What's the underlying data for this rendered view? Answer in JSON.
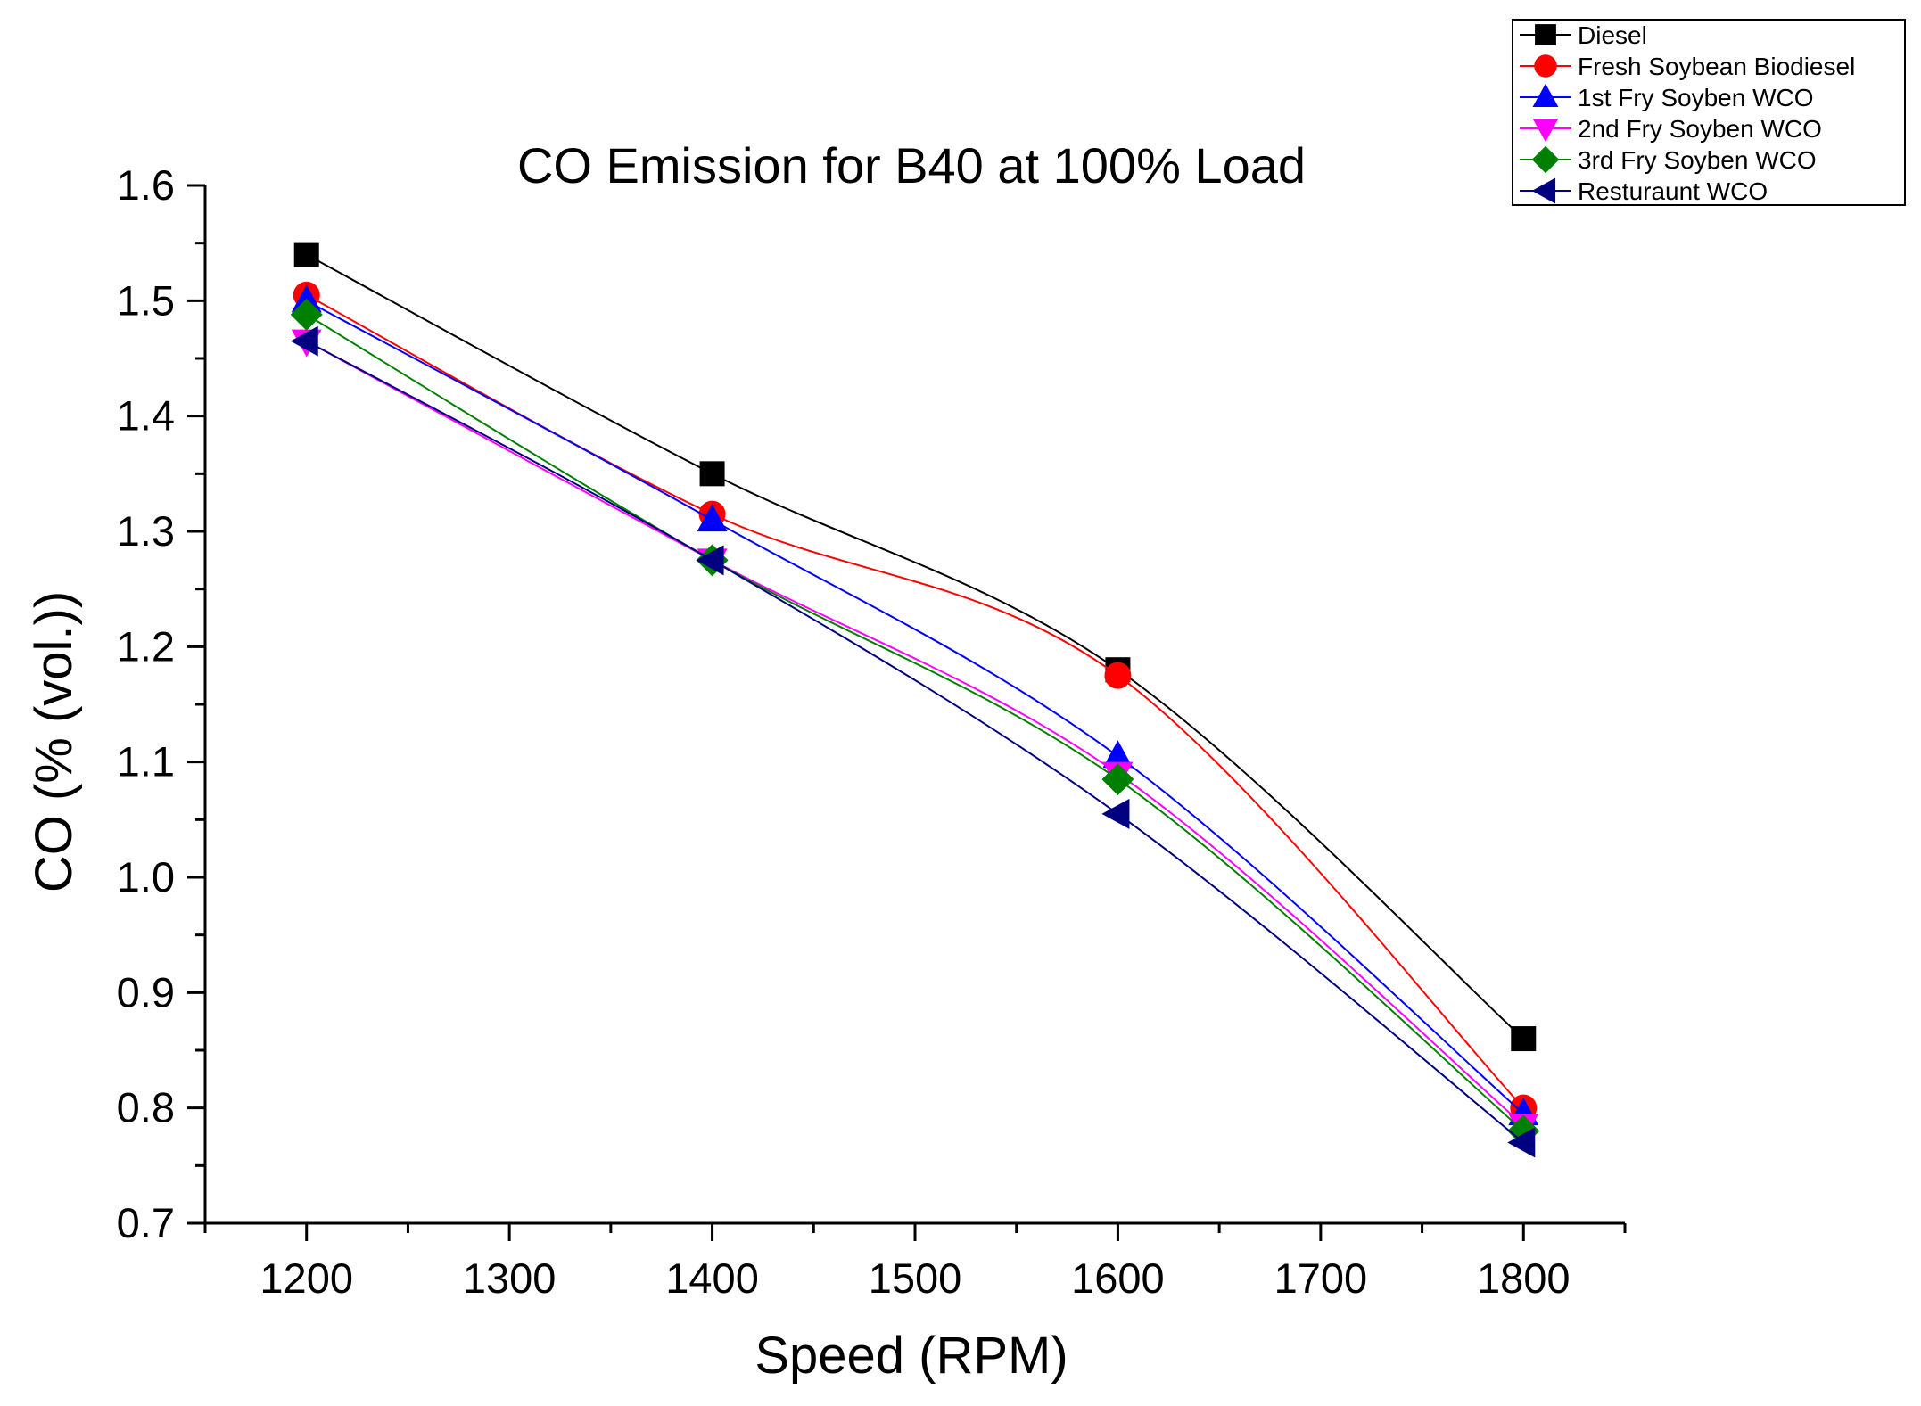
{
  "chart_data": {
    "type": "line",
    "title": "CO Emission for B40 at 100% Load",
    "xlabel": "Speed (RPM)",
    "ylabel": "CO (% (vol.))",
    "xlim": [
      1150,
      1850
    ],
    "ylim": [
      0.7,
      1.6
    ],
    "x_ticks": [
      1200,
      1300,
      1400,
      1500,
      1600,
      1700,
      1800
    ],
    "x_tick_labels": [
      "1200",
      "1300",
      "1400",
      "1500",
      "1600",
      "1700",
      "1800"
    ],
    "y_ticks": [
      0.7,
      0.8,
      0.9,
      1.0,
      1.1,
      1.2,
      1.3,
      1.4,
      1.5,
      1.6
    ],
    "y_tick_labels": [
      "0.7",
      "0.8",
      "0.9",
      "1.0",
      "1.1",
      "1.2",
      "1.3",
      "1.4",
      "1.5",
      "1.6"
    ],
    "grid": false,
    "legend_position": "top-right",
    "x": [
      1200,
      1400,
      1600,
      1800
    ],
    "series": [
      {
        "name": "Diesel",
        "values": [
          1.54,
          1.35,
          1.18,
          0.86
        ],
        "color": "#000000",
        "marker": "square"
      },
      {
        "name": "Fresh Soybean Biodiesel",
        "values": [
          1.505,
          1.315,
          1.175,
          0.8
        ],
        "color": "#ff0000",
        "marker": "circle"
      },
      {
        "name": "1st Fry Soyben WCO",
        "values": [
          1.5,
          1.31,
          1.105,
          0.795
        ],
        "color": "#0000ff",
        "marker": "triangle-up"
      },
      {
        "name": "2nd Fry Soyben WCO",
        "values": [
          1.465,
          1.275,
          1.09,
          0.785
        ],
        "color": "#ff00ff",
        "marker": "triangle-down"
      },
      {
        "name": "3rd Fry Soyben WCO",
        "values": [
          1.488,
          1.275,
          1.085,
          0.78
        ],
        "color": "#008000",
        "marker": "diamond"
      },
      {
        "name": "Resturaunt WCO",
        "values": [
          1.465,
          1.275,
          1.055,
          0.77
        ],
        "color": "#000080",
        "marker": "triangle-left"
      }
    ]
  }
}
